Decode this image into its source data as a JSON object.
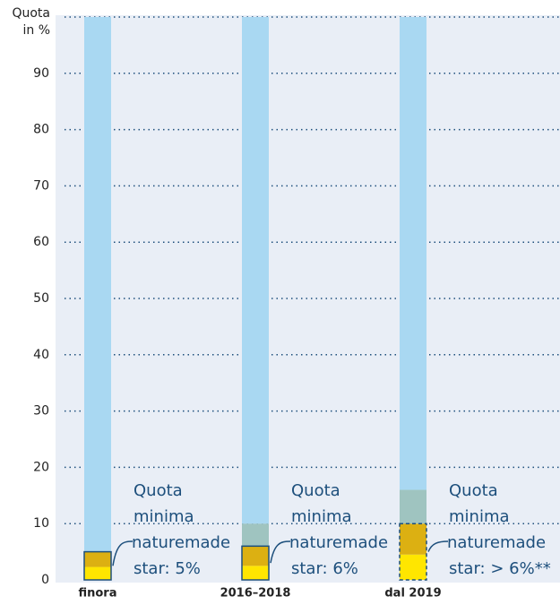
{
  "chart_data": {
    "type": "bar",
    "stacked": true,
    "ylabel": [
      "Quota",
      "in %"
    ],
    "categories": [
      "finora",
      "2016–2018",
      "dal 2019"
    ],
    "series": [
      {
        "color": "#ffe600",
        "values": [
          2.3,
          2.5,
          4.5
        ]
      },
      {
        "color": "#dcb012",
        "values": [
          2.7,
          3.5,
          5.5
        ]
      },
      {
        "color": "#9fc4c0",
        "values": [
          0,
          4,
          6
        ]
      },
      {
        "color": "#a9d8f2",
        "values": [
          95,
          90,
          84
        ]
      }
    ],
    "ylim": [
      0,
      100
    ],
    "yticks": [
      0,
      10,
      20,
      30,
      40,
      50,
      60,
      70,
      80,
      90
    ],
    "grid": true,
    "annotations": [
      {
        "lines": [
          "Quota",
          "minima",
          "naturemade",
          "star: 5%"
        ],
        "outline": "solid"
      },
      {
        "lines": [
          "Quota",
          "minima",
          "naturemade",
          "star: 6%"
        ],
        "outline": "solid"
      },
      {
        "lines": [
          "Quota",
          "minima",
          "naturemade",
          "star: > 6%**"
        ],
        "outline": "dashed"
      }
    ]
  }
}
